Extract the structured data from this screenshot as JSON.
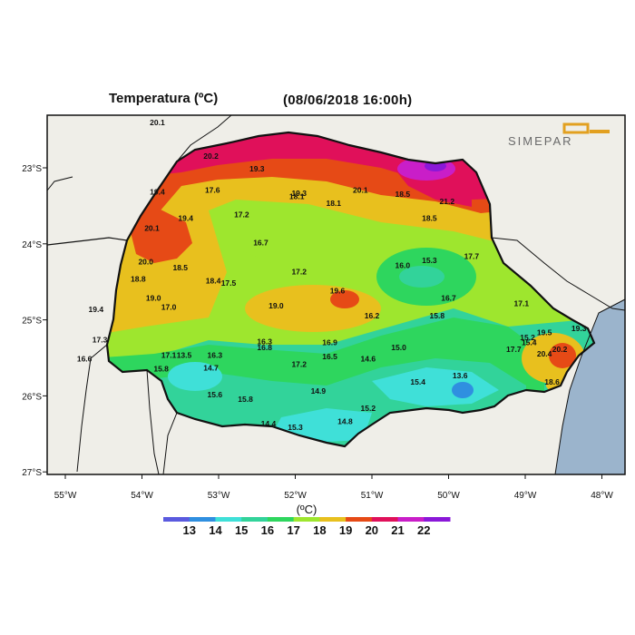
{
  "title": {
    "variable": "Temperatura (ºC)",
    "timestamp": "(08/06/2018 16:00h)"
  },
  "logo": {
    "text": "SIMEPAR"
  },
  "axes": {
    "lon_labels": [
      "55°W",
      "54°W",
      "53°W",
      "52°W",
      "51°W",
      "50°W",
      "49°W",
      "48°W"
    ],
    "lat_labels": [
      "23°S",
      "24°S",
      "25°S",
      "26°S",
      "27°S"
    ],
    "lon_range": [
      -55.3,
      -47.7
    ],
    "lat_range": [
      -22.5,
      -27.0
    ]
  },
  "legend": {
    "unit_label": "(ºC)",
    "tick_labels": [
      "13",
      "14",
      "15",
      "16",
      "17",
      "18",
      "19",
      "20",
      "21",
      "22"
    ],
    "colors": [
      "#5a5adf",
      "#2f8fe0",
      "#3fe0d8",
      "#32d39a",
      "#2ed65e",
      "#9ee62e",
      "#e8c01e",
      "#e64a16",
      "#e0105a",
      "#c91ec8",
      "#8a18d8"
    ]
  },
  "stations": [
    {
      "v": "20.1",
      "lon": -53.8,
      "lat": -22.44
    },
    {
      "v": "20.2",
      "lon": -53.1,
      "lat": -22.88
    },
    {
      "v": "19.3",
      "lon": -52.5,
      "lat": -23.05
    },
    {
      "v": "19.4",
      "lon": -53.8,
      "lat": -23.35
    },
    {
      "v": "17.6",
      "lon": -53.08,
      "lat": -23.33
    },
    {
      "v": "19.3",
      "lon": -51.95,
      "lat": -23.37
    },
    {
      "v": "18.1",
      "lon": -51.98,
      "lat": -23.41
    },
    {
      "v": "18.1",
      "lon": -51.5,
      "lat": -23.5
    },
    {
      "v": "20.1",
      "lon": -51.15,
      "lat": -23.33
    },
    {
      "v": "18.5",
      "lon": -50.6,
      "lat": -23.38
    },
    {
      "v": "21.2",
      "lon": -50.02,
      "lat": -23.48
    },
    {
      "v": "19.4",
      "lon": -53.43,
      "lat": -23.7
    },
    {
      "v": "17.2",
      "lon": -52.7,
      "lat": -23.65
    },
    {
      "v": "18.5",
      "lon": -50.25,
      "lat": -23.7
    },
    {
      "v": "20.1",
      "lon": -53.87,
      "lat": -23.83
    },
    {
      "v": "16.7",
      "lon": -52.45,
      "lat": -24.02
    },
    {
      "v": "17.7",
      "lon": -49.7,
      "lat": -24.2
    },
    {
      "v": "20.0",
      "lon": -53.95,
      "lat": -24.27
    },
    {
      "v": "18.5",
      "lon": -53.5,
      "lat": -24.35
    },
    {
      "v": "15.3",
      "lon": -50.25,
      "lat": -24.25
    },
    {
      "v": "16.0",
      "lon": -50.6,
      "lat": -24.32
    },
    {
      "v": "17.2",
      "lon": -51.95,
      "lat": -24.4
    },
    {
      "v": "18.8",
      "lon": -54.05,
      "lat": -24.5
    },
    {
      "v": "18.4",
      "lon": -53.07,
      "lat": -24.52
    },
    {
      "v": "17.5",
      "lon": -52.87,
      "lat": -24.55
    },
    {
      "v": "19.6",
      "lon": -51.45,
      "lat": -24.65
    },
    {
      "v": "19.0",
      "lon": -53.85,
      "lat": -24.75
    },
    {
      "v": "16.7",
      "lon": -50.0,
      "lat": -24.75
    },
    {
      "v": "17.0",
      "lon": -53.65,
      "lat": -24.87
    },
    {
      "v": "19.0",
      "lon": -52.25,
      "lat": -24.85
    },
    {
      "v": "17.1",
      "lon": -49.05,
      "lat": -24.82
    },
    {
      "v": "19.4",
      "lon": -54.6,
      "lat": -24.9
    },
    {
      "v": "16.2",
      "lon": -51.0,
      "lat": -24.98
    },
    {
      "v": "15.8",
      "lon": -50.15,
      "lat": -24.98
    },
    {
      "v": "19.5",
      "lon": -48.75,
      "lat": -25.2
    },
    {
      "v": "19.3",
      "lon": -48.3,
      "lat": -25.15
    },
    {
      "v": "17.3",
      "lon": -54.55,
      "lat": -25.3
    },
    {
      "v": "16.3",
      "lon": -52.4,
      "lat": -25.32
    },
    {
      "v": "16.9",
      "lon": -51.55,
      "lat": -25.33
    },
    {
      "v": "15.2",
      "lon": -48.97,
      "lat": -25.27
    },
    {
      "v": "15.4",
      "lon": -48.95,
      "lat": -25.33
    },
    {
      "v": "16.8",
      "lon": -52.4,
      "lat": -25.4
    },
    {
      "v": "15.0",
      "lon": -50.65,
      "lat": -25.4
    },
    {
      "v": "17.7",
      "lon": -49.15,
      "lat": -25.42
    },
    {
      "v": "20.2",
      "lon": -48.55,
      "lat": -25.42
    },
    {
      "v": "20.4",
      "lon": -48.75,
      "lat": -25.48
    },
    {
      "v": "17.1",
      "lon": -53.65,
      "lat": -25.5
    },
    {
      "v": "13.5",
      "lon": -53.45,
      "lat": -25.5
    },
    {
      "v": "16.3",
      "lon": -53.05,
      "lat": -25.5
    },
    {
      "v": "16.5",
      "lon": -51.55,
      "lat": -25.52
    },
    {
      "v": "14.6",
      "lon": -51.05,
      "lat": -25.55
    },
    {
      "v": "16.6",
      "lon": -54.75,
      "lat": -25.55
    },
    {
      "v": "17.2",
      "lon": -51.95,
      "lat": -25.62
    },
    {
      "v": "15.8",
      "lon": -53.75,
      "lat": -25.68
    },
    {
      "v": "14.7",
      "lon": -53.1,
      "lat": -25.67
    },
    {
      "v": "13.6",
      "lon": -49.85,
      "lat": -25.77
    },
    {
      "v": "15.4",
      "lon": -50.4,
      "lat": -25.85
    },
    {
      "v": "18.6",
      "lon": -48.65,
      "lat": -25.85
    },
    {
      "v": "14.9",
      "lon": -51.7,
      "lat": -25.97
    },
    {
      "v": "15.6",
      "lon": -53.05,
      "lat": -26.02
    },
    {
      "v": "15.8",
      "lon": -52.65,
      "lat": -26.08
    },
    {
      "v": "15.2",
      "lon": -51.05,
      "lat": -26.2
    },
    {
      "v": "14.4",
      "lon": -52.35,
      "lat": -26.4
    },
    {
      "v": "15.3",
      "lon": -52.0,
      "lat": -26.45
    },
    {
      "v": "14.8",
      "lon": -51.35,
      "lat": -26.37
    }
  ]
}
